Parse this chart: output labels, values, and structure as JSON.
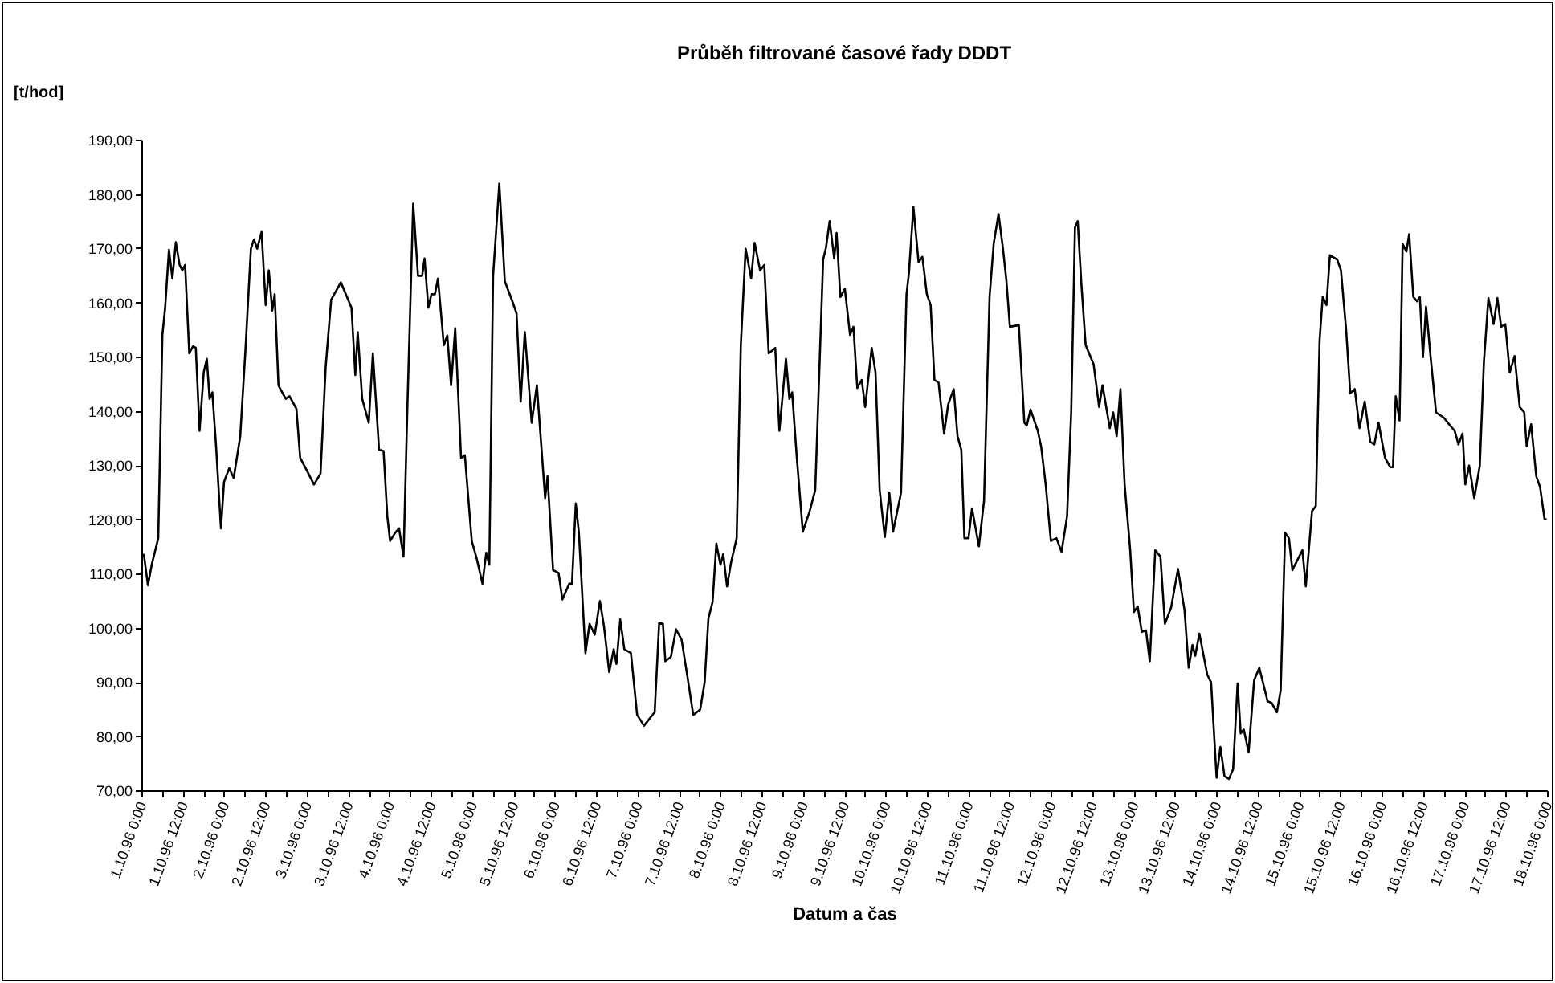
{
  "chart_data": {
    "type": "line",
    "title": "Průběh filtrované časové řady DDDT",
    "xlabel": "Datum a čas",
    "ylabel": "[t/hod]",
    "color": "#000000",
    "x": [
      "1996-10-01T00:42",
      "1996-10-01T01:54",
      "1996-10-01T03:00",
      "1996-10-01T04:54",
      "1996-10-01T06:06",
      "1996-10-01T06:54",
      "1996-10-01T08:00",
      "1996-10-01T09:00",
      "1996-10-01T10:00",
      "1996-10-01T11:06",
      "1996-10-01T11:54",
      "1996-10-01T12:42",
      "1996-10-01T13:54",
      "1996-10-01T15:00",
      "1996-10-01T15:48",
      "1996-10-01T16:54",
      "1996-10-01T18:06",
      "1996-10-01T19:00",
      "1996-10-01T19:48",
      "1996-10-01T20:36",
      "1996-10-01T21:42",
      "1996-10-01T23:06",
      "1996-10-02T00:00",
      "1996-10-02T01:30",
      "1996-10-02T02:48",
      "1996-10-02T04:42",
      "1996-10-02T06:12",
      "1996-10-02T07:48",
      "1996-10-02T08:42",
      "1996-10-02T09:36",
      "1996-10-02T10:54",
      "1996-10-02T12:06",
      "1996-10-02T13:00",
      "1996-10-02T14:00",
      "1996-10-02T14:42",
      "1996-10-02T15:48",
      "1996-10-02T17:54",
      "1996-10-02T19:00",
      "1996-10-02T21:00",
      "1996-10-02T22:06",
      "1996-10-03T00:06",
      "1996-10-03T02:06",
      "1996-10-03T04:00",
      "1996-10-03T05:30",
      "1996-10-03T07:06",
      "1996-10-03T09:54",
      "1996-10-03T13:00",
      "1996-10-03T14:06",
      "1996-10-03T14:48",
      "1996-10-03T16:06",
      "1996-10-03T18:00",
      "1996-10-03T19:12",
      "1996-10-03T21:00",
      "1996-10-03T22:18",
      "1996-10-03T23:24",
      "1996-10-04T00:12",
      "1996-10-04T01:42",
      "1996-10-04T02:48",
      "1996-10-04T04:06",
      "1996-10-04T05:12",
      "1996-10-04T06:54",
      "1996-10-04T08:18",
      "1996-10-04T09:30",
      "1996-10-04T10:12",
      "1996-10-04T11:18",
      "1996-10-04T12:12",
      "1996-10-04T13:12",
      "1996-10-04T14:06",
      "1996-10-04T15:48",
      "1996-10-04T16:48",
      "1996-10-04T17:54",
      "1996-10-04T19:06",
      "1996-10-04T20:48",
      "1996-10-04T21:54",
      "1996-10-04T23:54",
      "1996-10-05T01:24",
      "1996-10-05T03:00",
      "1996-10-05T04:06",
      "1996-10-05T05:00",
      "1996-10-05T06:06",
      "1996-10-05T07:54",
      "1996-10-05T09:30",
      "1996-10-05T11:48",
      "1996-10-05T12:54",
      "1996-10-05T14:06",
      "1996-10-05T15:18",
      "1996-10-05T17:18",
      "1996-10-05T18:48",
      "1996-10-05T21:12",
      "1996-10-05T21:54",
      "1996-10-05T23:30",
      "1996-10-06T01:06",
      "1996-10-06T02:12",
      "1996-10-06T04:12",
      "1996-10-06T05:00",
      "1996-10-06T06:06",
      "1996-10-06T07:00",
      "1996-10-06T08:54",
      "1996-10-06T10:06",
      "1996-10-06T11:36",
      "1996-10-06T13:06",
      "1996-10-06T14:18",
      "1996-10-06T15:48",
      "1996-10-06T17:06",
      "1996-10-06T17:54",
      "1996-10-06T19:00",
      "1996-10-06T20:12",
      "1996-10-06T22:06",
      "1996-10-06T23:54",
      "1996-10-07T01:54",
      "1996-10-07T05:00",
      "1996-10-07T06:18",
      "1996-10-07T07:24",
      "1996-10-07T08:06",
      "1996-10-07T09:42",
      "1996-10-07T11:12",
      "1996-10-07T12:48",
      "1996-10-07T14:18",
      "1996-10-07T16:12",
      "1996-10-07T18:12",
      "1996-10-07T19:30",
      "1996-10-07T20:36",
      "1996-10-07T21:48",
      "1996-10-07T22:54",
      "1996-10-08T00:06",
      "1996-10-08T00:54",
      "1996-10-08T02:00",
      "1996-10-08T03:12",
      "1996-10-08T04:48",
      "1996-10-08T06:00",
      "1996-10-08T07:24",
      "1996-10-08T09:00",
      "1996-10-08T10:00",
      "1996-10-08T11:36",
      "1996-10-08T12:48",
      "1996-10-08T14:06",
      "1996-10-08T16:00",
      "1996-10-08T17:12",
      "1996-10-08T19:06",
      "1996-10-08T20:06",
      "1996-10-08T20:54",
      "1996-10-08T22:12",
      "1996-10-09T00:00",
      "1996-10-09T02:00",
      "1996-10-09T03:36",
      "1996-10-09T05:54",
      "1996-10-09T06:42",
      "1996-10-09T07:48",
      "1996-10-09T09:06",
      "1996-10-09T09:48",
      "1996-10-09T10:54",
      "1996-10-09T12:12",
      "1996-10-09T13:42",
      "1996-10-09T14:42",
      "1996-10-09T15:48",
      "1996-10-09T17:06",
      "1996-10-09T18:06",
      "1996-10-09T20:00",
      "1996-10-09T21:06",
      "1996-10-09T22:18",
      "1996-10-09T23:48",
      "1996-10-10T01:06",
      "1996-10-10T02:12",
      "1996-10-10T04:30",
      "1996-10-10T06:06",
      "1996-10-10T06:48",
      "1996-10-10T08:06",
      "1996-10-10T09:36",
      "1996-10-10T10:42",
      "1996-10-10T12:00",
      "1996-10-10T13:06",
      "1996-10-10T14:12",
      "1996-10-10T15:24",
      "1996-10-10T17:00",
      "1996-10-10T18:12",
      "1996-10-10T19:48",
      "1996-10-10T20:54",
      "1996-10-10T22:00",
      "1996-10-10T22:54",
      "1996-10-11T00:06",
      "1996-10-11T01:06",
      "1996-10-11T03:06",
      "1996-10-11T04:36",
      "1996-10-11T06:12",
      "1996-10-11T07:24",
      "1996-10-11T08:48",
      "1996-10-11T10:06",
      "1996-10-11T11:06",
      "1996-10-11T12:06",
      "1996-10-11T14:42",
      "1996-10-11T16:18",
      "1996-10-11T17:00",
      "1996-10-11T18:06",
      "1996-10-11T20:12",
      "1996-10-11T21:12",
      "1996-10-11T22:30",
      "1996-10-12T00:00",
      "1996-10-12T01:36",
      "1996-10-12T03:06",
      "1996-10-12T04:42",
      "1996-10-12T05:54",
      "1996-10-12T07:00",
      "1996-10-12T07:48",
      "1996-10-12T08:48",
      "1996-10-12T10:06",
      "1996-10-12T12:24",
      "1996-10-12T14:00",
      "1996-10-12T15:00",
      "1996-10-12T17:06",
      "1996-10-12T18:06",
      "1996-10-12T19:06",
      "1996-10-12T20:12",
      "1996-10-12T21:24",
      "1996-10-12T23:00",
      "1996-10-13T00:06",
      "1996-10-13T01:12",
      "1996-10-13T02:24",
      "1996-10-13T03:36",
      "1996-10-13T04:42",
      "1996-10-13T06:18",
      "1996-10-13T07:48",
      "1996-10-13T09:06",
      "1996-10-13T10:54",
      "1996-10-13T12:54",
      "1996-10-13T14:48",
      "1996-10-13T16:00",
      "1996-10-13T17:06",
      "1996-10-13T17:54",
      "1996-10-13T19:06",
      "1996-10-13T21:24",
      "1996-10-13T22:30",
      "1996-10-14T00:06",
      "1996-10-14T01:12",
      "1996-10-14T02:24",
      "1996-10-14T03:42",
      "1996-10-14T04:54",
      "1996-10-14T06:12",
      "1996-10-14T07:06",
      "1996-10-14T08:00",
      "1996-10-14T09:24",
      "1996-10-14T11:00",
      "1996-10-14T12:30",
      "1996-10-14T14:54",
      "1996-10-14T16:06",
      "1996-10-14T17:36",
      "1996-10-14T18:42",
      "1996-10-14T20:00",
      "1996-10-14T21:06",
      "1996-10-14T22:06",
      "1996-10-15T01:00",
      "1996-10-15T02:00",
      "1996-10-15T03:48",
      "1996-10-15T04:54",
      "1996-10-15T06:00",
      "1996-10-15T06:54",
      "1996-10-15T08:00",
      "1996-10-15T09:00",
      "1996-10-15T11:06",
      "1996-10-15T12:12",
      "1996-10-15T13:42",
      "1996-10-15T14:54",
      "1996-10-15T16:12",
      "1996-10-15T17:36",
      "1996-10-15T19:06",
      "1996-10-15T20:42",
      "1996-10-15T21:54",
      "1996-10-15T23:06",
      "1996-10-16T01:00",
      "1996-10-16T02:30",
      "1996-10-16T03:18",
      "1996-10-16T04:06",
      "1996-10-16T05:12",
      "1996-10-16T06:06",
      "1996-10-16T07:12",
      "1996-10-16T08:00",
      "1996-10-16T09:12",
      "1996-10-16T10:18",
      "1996-10-16T11:06",
      "1996-10-16T12:00",
      "1996-10-16T12:54",
      "1996-10-16T14:12",
      "1996-10-16T15:48",
      "1996-10-16T18:06",
      "1996-10-16T19:36",
      "1996-10-16T21:12",
      "1996-10-16T22:18",
      "1996-10-16T23:30",
      "1996-10-17T00:18",
      "1996-10-17T01:24",
      "1996-10-17T02:54",
      "1996-10-17T04:30",
      "1996-10-17T05:42",
      "1996-10-17T07:00",
      "1996-10-17T08:30",
      "1996-10-17T09:36",
      "1996-10-17T10:42",
      "1996-10-17T11:54",
      "1996-10-17T13:12",
      "1996-10-17T14:36",
      "1996-10-17T16:06",
      "1996-10-17T17:24",
      "1996-10-17T18:06",
      "1996-10-17T19:24",
      "1996-10-17T20:54",
      "1996-10-17T22:00",
      "1996-10-17T23:18",
      "1996-10-17T23:54"
    ],
    "values": [
      113.6,
      107.8,
      111.6,
      116.5,
      154.0,
      159.0,
      169.7,
      164.4,
      171.1,
      166.9,
      165.9,
      166.9,
      150.6,
      151.9,
      151.6,
      136.3,
      147.1,
      149.6,
      142.2,
      143.4,
      133.3,
      118.3,
      126.9,
      129.4,
      127.6,
      135.3,
      151.1,
      169.9,
      171.6,
      169.9,
      173.0,
      159.5,
      165.9,
      158.5,
      161.5,
      144.7,
      142.2,
      142.7,
      140.4,
      131.3,
      128.9,
      126.4,
      128.4,
      148.1,
      160.5,
      163.7,
      159.0,
      146.6,
      154.5,
      142.2,
      137.8,
      150.6,
      132.8,
      132.6,
      120.5,
      116.0,
      117.5,
      118.3,
      113.1,
      140.2,
      178.2,
      164.9,
      164.9,
      168.1,
      159.0,
      161.5,
      161.5,
      164.4,
      152.1,
      153.9,
      144.7,
      155.2,
      131.3,
      131.8,
      116.0,
      112.6,
      108.1,
      113.8,
      111.6,
      164.9,
      181.9,
      163.9,
      160.0,
      158.0,
      141.7,
      154.5,
      137.8,
      144.7,
      123.9,
      127.9,
      110.6,
      110.1,
      105.2,
      108.1,
      108.1,
      122.9,
      117.5,
      95.3,
      100.7,
      98.7,
      104.9,
      100.2,
      91.8,
      96.0,
      93.3,
      101.5,
      96.0,
      95.3,
      83.9,
      81.9,
      84.4,
      100.9,
      100.7,
      93.8,
      94.6,
      99.7,
      97.8,
      91.8,
      83.9,
      84.9,
      89.9,
      101.7,
      104.7,
      115.5,
      111.6,
      113.6,
      107.6,
      112.1,
      116.5,
      152.1,
      169.9,
      164.4,
      171.0,
      165.9,
      166.9,
      150.6,
      151.6,
      136.3,
      149.6,
      142.2,
      143.4,
      131.8,
      117.7,
      121.5,
      125.4,
      167.9,
      170.0,
      175.0,
      168.1,
      172.8,
      161.0,
      162.5,
      154.0,
      155.5,
      144.2,
      145.7,
      140.7,
      151.6,
      147.1,
      125.4,
      116.7,
      124.9,
      117.7,
      124.9,
      161.5,
      165.4,
      177.6,
      167.4,
      168.4,
      161.5,
      159.5,
      145.7,
      145.2,
      135.8,
      141.2,
      144.0,
      135.3,
      132.8,
      116.5,
      116.5,
      122.0,
      115.0,
      123.4,
      161.0,
      170.8,
      176.3,
      169.9,
      163.9,
      155.5,
      155.8,
      137.8,
      137.3,
      140.2,
      136.3,
      133.3,
      126.4,
      116.0,
      116.5,
      114.0,
      120.5,
      139.7,
      173.8,
      175.0,
      163.9,
      152.1,
      148.6,
      140.7,
      144.7,
      136.8,
      139.7,
      135.3,
      144.0,
      126.4,
      114.5,
      102.9,
      103.9,
      99.2,
      99.5,
      93.8,
      114.3,
      113.1,
      100.7,
      103.7,
      110.8,
      103.2,
      92.6,
      96.8,
      94.8,
      98.9,
      91.3,
      89.9,
      72.3,
      78.0,
      72.6,
      72.1,
      73.9,
      89.7,
      80.5,
      81.2,
      77.0,
      90.3,
      92.6,
      86.4,
      86.1,
      84.4,
      88.4,
      117.5,
      116.5,
      110.6,
      114.3,
      107.6,
      121.5,
      122.4,
      153.0,
      161.0,
      159.5,
      168.7,
      167.9,
      165.9,
      155.0,
      143.2,
      144.0,
      136.8,
      141.7,
      134.3,
      133.8,
      137.8,
      131.3,
      129.6,
      129.6,
      142.7,
      138.2,
      170.8,
      169.4,
      172.6,
      161.0,
      160.2,
      161.0,
      149.9,
      159.2,
      150.1,
      139.7,
      138.7,
      137.5,
      136.3,
      133.8,
      135.8,
      126.4,
      129.9,
      123.9,
      129.9,
      149.1,
      160.8,
      156.0,
      160.8,
      155.5,
      156.0,
      147.1,
      150.1,
      140.7,
      139.7,
      133.5,
      137.5,
      127.9,
      125.9,
      120.0,
      120.0
    ],
    "xlim": [
      "1996-10-01T00:00",
      "1996-10-18T00:00"
    ],
    "xticks": [
      {
        "value": "1996-10-01T00:00",
        "label": "1.10.96 0:00"
      },
      {
        "value": "1996-10-01T06:00",
        "label": null
      },
      {
        "value": "1996-10-01T12:00",
        "label": "1.10.96 12:00"
      },
      {
        "value": "1996-10-01T18:00",
        "label": null
      },
      {
        "value": "1996-10-02T00:00",
        "label": "2.10.96 0:00"
      },
      {
        "value": "1996-10-02T06:00",
        "label": null
      },
      {
        "value": "1996-10-02T12:00",
        "label": "2.10.96 12:00"
      },
      {
        "value": "1996-10-02T18:00",
        "label": null
      },
      {
        "value": "1996-10-03T00:00",
        "label": "3.10.96 0:00"
      },
      {
        "value": "1996-10-03T06:00",
        "label": null
      },
      {
        "value": "1996-10-03T12:00",
        "label": "3.10.96 12:00"
      },
      {
        "value": "1996-10-03T18:00",
        "label": null
      },
      {
        "value": "1996-10-04T00:00",
        "label": "4.10.96 0:00"
      },
      {
        "value": "1996-10-04T06:00",
        "label": null
      },
      {
        "value": "1996-10-04T12:00",
        "label": "4.10.96 12:00"
      },
      {
        "value": "1996-10-04T18:00",
        "label": null
      },
      {
        "value": "1996-10-05T00:00",
        "label": "5.10.96 0:00"
      },
      {
        "value": "1996-10-05T06:00",
        "label": null
      },
      {
        "value": "1996-10-05T12:00",
        "label": "5.10.96 12:00"
      },
      {
        "value": "1996-10-05T18:00",
        "label": null
      },
      {
        "value": "1996-10-06T00:00",
        "label": "6.10.96 0:00"
      },
      {
        "value": "1996-10-06T06:00",
        "label": null
      },
      {
        "value": "1996-10-06T12:00",
        "label": "6.10.96 12:00"
      },
      {
        "value": "1996-10-06T18:00",
        "label": null
      },
      {
        "value": "1996-10-07T00:00",
        "label": "7.10.96 0:00"
      },
      {
        "value": "1996-10-07T06:00",
        "label": null
      },
      {
        "value": "1996-10-07T12:00",
        "label": "7.10.96 12:00"
      },
      {
        "value": "1996-10-07T18:00",
        "label": null
      },
      {
        "value": "1996-10-08T00:00",
        "label": "8.10.96 0:00"
      },
      {
        "value": "1996-10-08T06:00",
        "label": null
      },
      {
        "value": "1996-10-08T12:00",
        "label": "8.10.96 12:00"
      },
      {
        "value": "1996-10-08T18:00",
        "label": null
      },
      {
        "value": "1996-10-09T00:00",
        "label": "9.10.96 0:00"
      },
      {
        "value": "1996-10-09T06:00",
        "label": null
      },
      {
        "value": "1996-10-09T12:00",
        "label": "9.10.96 12:00"
      },
      {
        "value": "1996-10-09T18:00",
        "label": null
      },
      {
        "value": "1996-10-10T00:00",
        "label": "10.10.96 0:00"
      },
      {
        "value": "1996-10-10T06:00",
        "label": null
      },
      {
        "value": "1996-10-10T12:00",
        "label": "10.10.96 12:00"
      },
      {
        "value": "1996-10-10T18:00",
        "label": null
      },
      {
        "value": "1996-10-11T00:00",
        "label": "11.10.96 0:00"
      },
      {
        "value": "1996-10-11T06:00",
        "label": null
      },
      {
        "value": "1996-10-11T12:00",
        "label": "11.10.96 12:00"
      },
      {
        "value": "1996-10-11T18:00",
        "label": null
      },
      {
        "value": "1996-10-12T00:00",
        "label": "12.10.96 0:00"
      },
      {
        "value": "1996-10-12T06:00",
        "label": null
      },
      {
        "value": "1996-10-12T12:00",
        "label": "12.10.96 12:00"
      },
      {
        "value": "1996-10-12T18:00",
        "label": null
      },
      {
        "value": "1996-10-13T00:00",
        "label": "13.10.96 0:00"
      },
      {
        "value": "1996-10-13T06:00",
        "label": null
      },
      {
        "value": "1996-10-13T12:00",
        "label": "13.10.96 12:00"
      },
      {
        "value": "1996-10-13T18:00",
        "label": null
      },
      {
        "value": "1996-10-14T00:00",
        "label": "14.10.96 0:00"
      },
      {
        "value": "1996-10-14T06:00",
        "label": null
      },
      {
        "value": "1996-10-14T12:00",
        "label": "14.10.96 12:00"
      },
      {
        "value": "1996-10-14T18:00",
        "label": null
      },
      {
        "value": "1996-10-15T00:00",
        "label": "15.10.96 0:00"
      },
      {
        "value": "1996-10-15T06:00",
        "label": null
      },
      {
        "value": "1996-10-15T12:00",
        "label": "15.10.96 12:00"
      },
      {
        "value": "1996-10-15T18:00",
        "label": null
      },
      {
        "value": "1996-10-16T00:00",
        "label": "16.10.96 0:00"
      },
      {
        "value": "1996-10-16T06:00",
        "label": null
      },
      {
        "value": "1996-10-16T12:00",
        "label": "16.10.96 12:00"
      },
      {
        "value": "1996-10-16T18:00",
        "label": null
      },
      {
        "value": "1996-10-17T00:00",
        "label": "17.10.96 0:00"
      },
      {
        "value": "1996-10-17T06:00",
        "label": null
      },
      {
        "value": "1996-10-17T12:00",
        "label": "17.10.96 12:00"
      },
      {
        "value": "1996-10-17T18:00",
        "label": null
      },
      {
        "value": "1996-10-18T00:00",
        "label": "18.10.96 0:00"
      }
    ],
    "ylim": [
      70,
      190
    ],
    "yticks": [
      {
        "value": 70,
        "label": "70,00"
      },
      {
        "value": 80,
        "label": "80,00"
      },
      {
        "value": 90,
        "label": "90,00"
      },
      {
        "value": 100,
        "label": "100,00"
      },
      {
        "value": 110,
        "label": "110,00"
      },
      {
        "value": 120,
        "label": "120,00"
      },
      {
        "value": 130,
        "label": "130,00"
      },
      {
        "value": 140,
        "label": "140,00"
      },
      {
        "value": 150,
        "label": "150,00"
      },
      {
        "value": 160,
        "label": "160,00"
      },
      {
        "value": 170,
        "label": "170,00"
      },
      {
        "value": 180,
        "label": "180,00"
      },
      {
        "value": 190,
        "label": "190,00"
      }
    ]
  }
}
